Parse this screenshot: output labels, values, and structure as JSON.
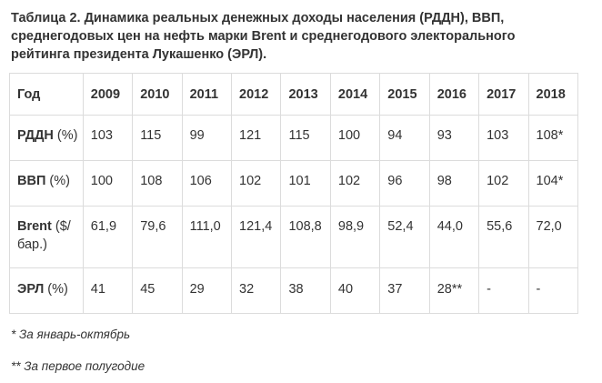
{
  "caption": {
    "line1": "Таблица 2. Динамика реальных денежных доходы населения (РДДН), ВВП,",
    "line2": "среднегодовых цен на нефть марки Brent и среднегодового электорального",
    "line3": "рейтинга президента Лукашенко (ЭРЛ)."
  },
  "table": {
    "header": {
      "label": "Год",
      "years": [
        "2009",
        "2010",
        "2011",
        "2012",
        "2013",
        "2014",
        "2015",
        "2016",
        "2017",
        "2018"
      ]
    },
    "rows": [
      {
        "label_bold": "РДДН",
        "label_rest": " (%)",
        "values": [
          "103",
          "115",
          "99",
          "121",
          "115",
          "100",
          "94",
          "93",
          "103",
          "108*"
        ]
      },
      {
        "label_bold": "ВВП",
        "label_rest": " (%)",
        "values": [
          "100",
          "108",
          "106",
          "102",
          "101",
          "102",
          "96",
          "98",
          "102",
          "104*"
        ]
      },
      {
        "label_bold": "Brent",
        "label_rest": " ($/ бар.)",
        "values": [
          "61,9",
          "79,6",
          "111,0",
          "121,4",
          "108,8",
          "98,9",
          "52,4",
          "44,0",
          "55,6",
          "72,0"
        ]
      },
      {
        "label_bold": "ЭРЛ",
        "label_rest": " (%)",
        "values": [
          "41",
          "45",
          "29",
          "32",
          "38",
          "40",
          "37",
          "28**",
          "-",
          "-"
        ]
      }
    ]
  },
  "footnotes": {
    "note1": "* За январь-октябрь",
    "note2": "** За первое полугодие"
  }
}
